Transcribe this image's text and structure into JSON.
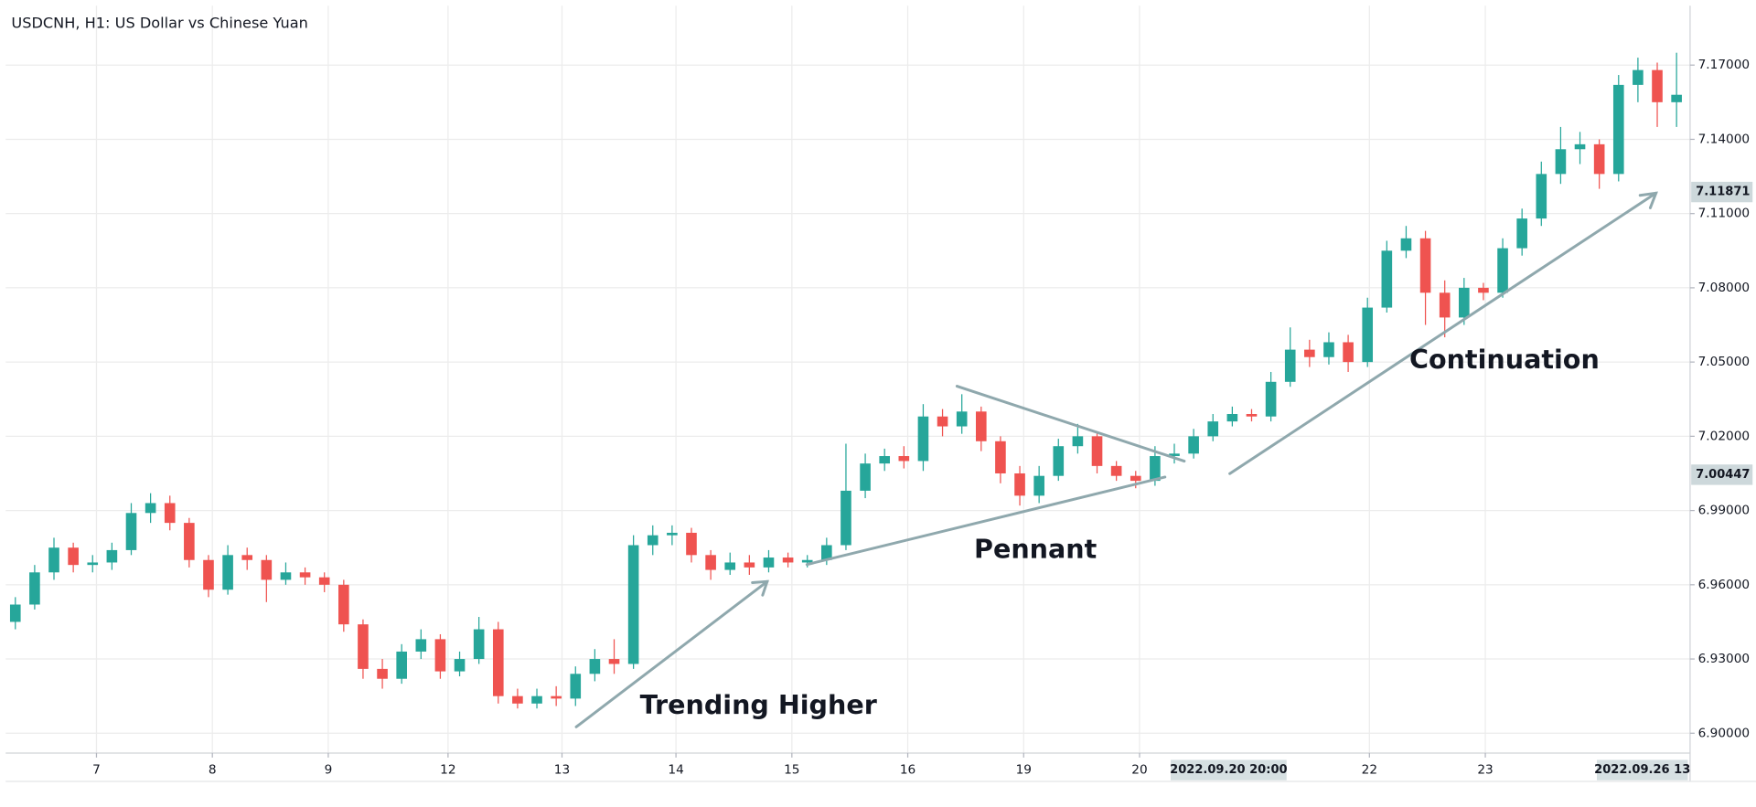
{
  "chart_data": {
    "type": "candlestick",
    "title": "USDCNH, H1: US Dollar vs Chinese Yuan",
    "up_color": "#26a69a",
    "down_color": "#ef5350",
    "grid": true,
    "xlim": [
      0,
      87.2
    ],
    "xticks": [
      {
        "value": 4.7,
        "label": "7"
      },
      {
        "value": 10.7,
        "label": "8"
      },
      {
        "value": 16.7,
        "label": "9"
      },
      {
        "value": 22.9,
        "label": "12"
      },
      {
        "value": 28.8,
        "label": "13"
      },
      {
        "value": 34.7,
        "label": "14"
      },
      {
        "value": 40.7,
        "label": "15"
      },
      {
        "value": 46.7,
        "label": "16"
      },
      {
        "value": 52.7,
        "label": "19"
      },
      {
        "value": 58.7,
        "label": "20"
      },
      {
        "value": 70.6,
        "label": "22"
      },
      {
        "value": 76.6,
        "label": "23"
      }
    ],
    "ylim": [
      6.892,
      7.194
    ],
    "yticks": [
      {
        "value": 6.9,
        "label": "6.90000"
      },
      {
        "value": 6.93,
        "label": "6.93000"
      },
      {
        "value": 6.96,
        "label": "6.96000"
      },
      {
        "value": 6.99,
        "label": "6.99000"
      },
      {
        "value": 7.02,
        "label": "7.02000"
      },
      {
        "value": 7.05,
        "label": "7.05000"
      },
      {
        "value": 7.08,
        "label": "7.08000"
      },
      {
        "value": 7.11,
        "label": "7.11000"
      },
      {
        "value": 7.14,
        "label": "7.14000"
      },
      {
        "value": 7.17,
        "label": "7.17000"
      }
    ],
    "price_labels": [
      {
        "value": 7.11871,
        "label": "7.11871"
      },
      {
        "value": 7.00447,
        "label": "7.00447"
      }
    ],
    "time_labels": [
      "2022.09.20 20:00",
      "2022.09.26 13"
    ],
    "annotations": [
      "Trending Higher",
      "Pennant",
      "Continuation"
    ],
    "open": [
      6.945,
      6.952,
      6.965,
      6.975,
      6.968,
      6.969,
      6.974,
      6.989,
      6.993,
      6.985,
      6.97,
      6.958,
      6.972,
      6.97,
      6.962,
      6.965,
      6.963,
      6.96,
      6.944,
      6.926,
      6.922,
      6.933,
      6.938,
      6.925,
      6.93,
      6.942,
      6.915,
      6.912,
      6.915,
      6.914,
      6.924,
      6.93,
      6.928,
      6.976,
      6.98,
      6.981,
      6.972,
      6.966,
      6.969,
      6.967,
      6.971,
      6.969,
      6.97,
      6.976,
      6.998,
      7.009,
      7.012,
      7.01,
      7.028,
      7.024,
      7.03,
      7.018,
      7.005,
      6.996,
      7.004,
      7.016,
      7.02,
      7.008,
      7.004,
      7.002,
      7.012,
      7.013,
      7.02,
      7.026,
      7.029,
      7.028,
      7.042,
      7.055,
      7.052,
      7.058,
      7.05,
      7.072,
      7.095,
      7.1,
      7.078,
      7.068,
      7.08,
      7.078,
      7.096,
      7.108,
      7.126,
      7.136,
      7.138,
      7.126,
      7.162,
      7.168,
      7.155
    ],
    "high": [
      6.955,
      6.968,
      6.979,
      6.977,
      6.972,
      6.977,
      6.993,
      6.997,
      6.996,
      6.987,
      6.972,
      6.976,
      6.975,
      6.972,
      6.969,
      6.967,
      6.965,
      6.962,
      6.946,
      6.93,
      6.936,
      6.942,
      6.94,
      6.933,
      6.947,
      6.945,
      6.918,
      6.918,
      6.919,
      6.927,
      6.934,
      6.938,
      6.98,
      6.984,
      6.984,
      6.983,
      6.974,
      6.973,
      6.972,
      6.974,
      6.973,
      6.972,
      6.979,
      7.017,
      7.013,
      7.015,
      7.016,
      7.033,
      7.031,
      7.037,
      7.032,
      7.02,
      7.008,
      7.008,
      7.019,
      7.025,
      7.022,
      7.01,
      7.006,
      7.016,
      7.017,
      7.023,
      7.029,
      7.032,
      7.031,
      7.046,
      7.064,
      7.059,
      7.062,
      7.061,
      7.076,
      7.099,
      7.105,
      7.103,
      7.083,
      7.084,
      7.082,
      7.1,
      7.112,
      7.131,
      7.145,
      7.143,
      7.14,
      7.166,
      7.173,
      7.171,
      7.175
    ],
    "low": [
      6.942,
      6.95,
      6.962,
      6.965,
      6.965,
      6.966,
      6.972,
      6.985,
      6.982,
      6.967,
      6.955,
      6.956,
      6.966,
      6.953,
      6.96,
      6.96,
      6.957,
      6.941,
      6.922,
      6.918,
      6.92,
      6.93,
      6.922,
      6.923,
      6.928,
      6.912,
      6.91,
      6.91,
      6.911,
      6.911,
      6.921,
      6.924,
      6.926,
      6.972,
      6.976,
      6.969,
      6.962,
      6.964,
      6.964,
      6.965,
      6.967,
      6.967,
      6.968,
      6.974,
      6.995,
      7.006,
      7.007,
      7.006,
      7.02,
      7.021,
      7.014,
      7.001,
      6.992,
      6.993,
      7.002,
      7.013,
      7.005,
      7.002,
      6.999,
      7.0,
      7.009,
      7.011,
      7.018,
      7.024,
      7.026,
      7.026,
      7.04,
      7.048,
      7.049,
      7.046,
      7.048,
      7.07,
      7.092,
      7.065,
      7.06,
      7.065,
      7.075,
      7.076,
      7.093,
      7.105,
      7.122,
      7.13,
      7.12,
      7.123,
      7.155,
      7.145,
      7.145
    ],
    "close": [
      6.952,
      6.965,
      6.975,
      6.968,
      6.969,
      6.974,
      6.989,
      6.993,
      6.985,
      6.97,
      6.958,
      6.972,
      6.97,
      6.962,
      6.965,
      6.963,
      6.96,
      6.944,
      6.926,
      6.922,
      6.933,
      6.938,
      6.925,
      6.93,
      6.942,
      6.915,
      6.912,
      6.915,
      6.914,
      6.924,
      6.93,
      6.928,
      6.976,
      6.98,
      6.981,
      6.972,
      6.966,
      6.969,
      6.967,
      6.971,
      6.969,
      6.97,
      6.976,
      6.998,
      7.009,
      7.012,
      7.01,
      7.028,
      7.024,
      7.03,
      7.018,
      7.005,
      6.996,
      7.004,
      7.016,
      7.02,
      7.008,
      7.004,
      7.002,
      7.012,
      7.013,
      7.02,
      7.026,
      7.029,
      7.028,
      7.042,
      7.055,
      7.052,
      7.058,
      7.05,
      7.072,
      7.095,
      7.1,
      7.078,
      7.068,
      7.08,
      7.078,
      7.096,
      7.108,
      7.126,
      7.136,
      7.138,
      7.126,
      7.162,
      7.168,
      7.155,
      7.158
    ]
  }
}
